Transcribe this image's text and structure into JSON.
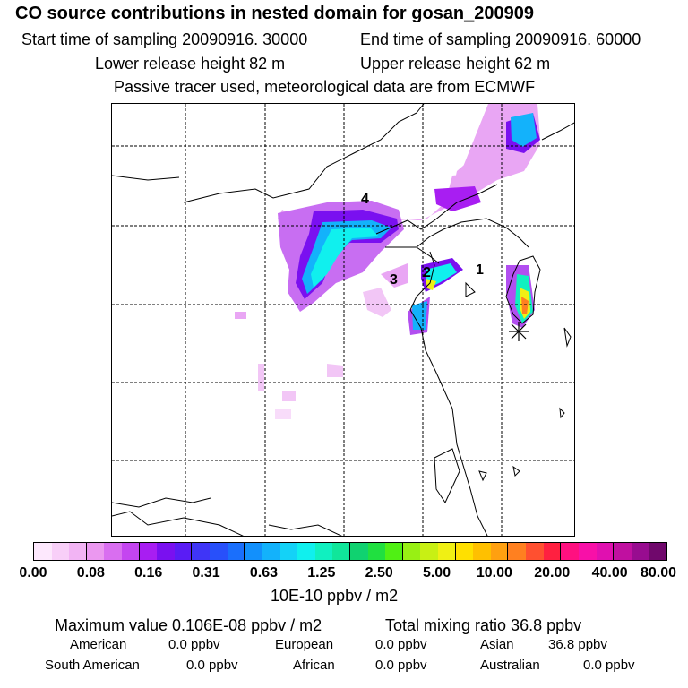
{
  "header": {
    "title": "CO  source contributions in nested domain for gosan_200909",
    "start_time": "Start time of sampling 20090916. 30000",
    "end_time": "End time of sampling 20090916. 60000",
    "lower_release": "Lower release height   82 m",
    "upper_release": "Upper release height   62 m",
    "tracer_note": "Passive tracer used, meteorological data are from ECMWF"
  },
  "map": {
    "region_labels": [
      "1",
      "2",
      "3",
      "4"
    ],
    "receptor_marker": "asterisk-icon"
  },
  "colorbar": {
    "colors": [
      "#fde8fd",
      "#f8cff8",
      "#f2b4f4",
      "#eb98f0",
      "#d96ef0",
      "#c445f0",
      "#a81ef2",
      "#7a10f0",
      "#5a1cf5",
      "#3f35f7",
      "#2850fa",
      "#1a6ffc",
      "#1290fc",
      "#13b2fb",
      "#14d2f7",
      "#10f0ee",
      "#10f0c0",
      "#10e69a",
      "#10d270",
      "#20e040",
      "#50f014",
      "#98f014",
      "#c8f014",
      "#f0f014",
      "#ffe000",
      "#ffc000",
      "#ffa010",
      "#ff8020",
      "#ff5030",
      "#ff2040",
      "#ff1080",
      "#f810a8",
      "#e010b0",
      "#c010a0",
      "#980c90",
      "#70086c"
    ],
    "tick_labels": [
      "0.00",
      "0.08",
      "0.16",
      "0.31",
      "0.63",
      "1.25",
      "2.50",
      "5.00",
      "10.00",
      "20.00",
      "40.00",
      "80.00"
    ],
    "unit_label": "10E-10 ppbv / m2"
  },
  "stats": {
    "maximum": "Maximum value  0.106E-08 ppbv / m2",
    "total": "Total mixing ratio       36.8 ppbv",
    "american_label": "American",
    "american_value": "0.0 ppbv",
    "european_label": "European",
    "european_value": "0.0 ppbv",
    "asian_label": "Asian",
    "asian_value": "36.8 ppbv",
    "south_american_label": "South American",
    "south_american_value": "0.0 ppbv",
    "african_label": "African",
    "african_value": "0.0 ppbv",
    "australian_label": "Australian",
    "australian_value": "0.0 ppbv"
  }
}
